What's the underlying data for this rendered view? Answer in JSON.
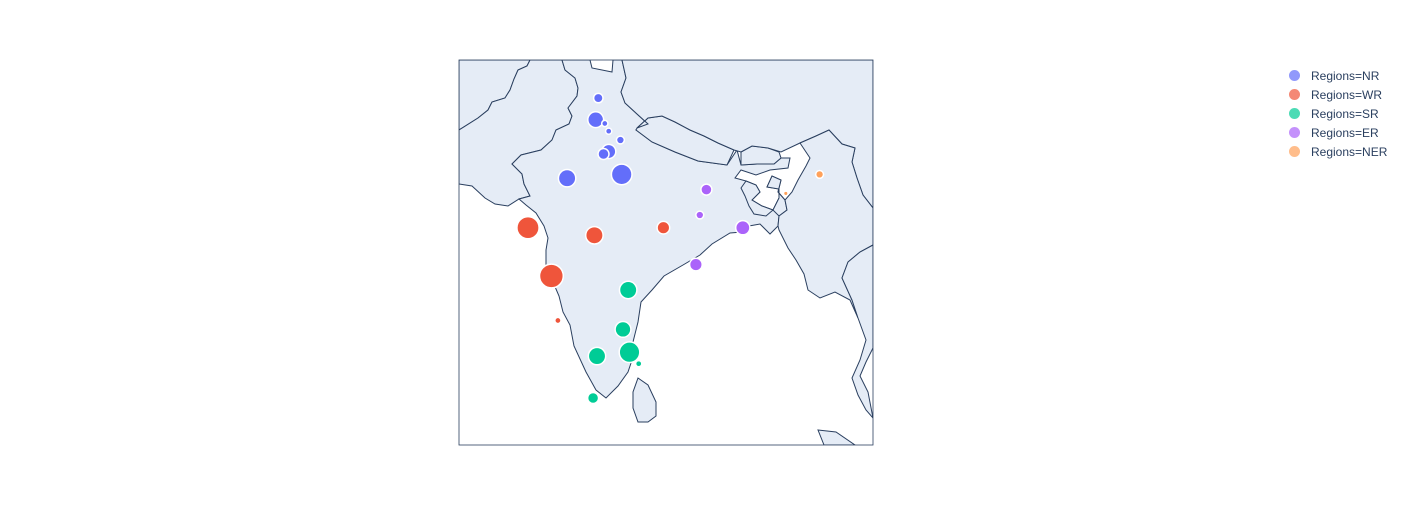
{
  "legend": {
    "items": [
      {
        "label": "Regions=NR",
        "color": "#636efa"
      },
      {
        "label": "Regions=WR",
        "color": "#ef553b"
      },
      {
        "label": "Regions=SR",
        "color": "#00cc96"
      },
      {
        "label": "Regions=ER",
        "color": "#ab63fa"
      },
      {
        "label": "Regions=NER",
        "color": "#ffa15a"
      }
    ]
  },
  "map": {
    "projection": "geographic",
    "land_color": "#e5ecf6",
    "border_color": "#2a3f5f",
    "lon_range": [
      66.5,
      98.3
    ],
    "lat_range": [
      5.5,
      35.8
    ]
  },
  "chart_data": {
    "type": "scatter",
    "series": [
      {
        "name": "Regions=NR",
        "color": "#636efa",
        "points": [
          {
            "lon": 77.2,
            "lat": 32.8,
            "size": 4
          },
          {
            "lon": 77.0,
            "lat": 31.1,
            "size": 8
          },
          {
            "lon": 78.0,
            "lat": 30.2,
            "size": 2
          },
          {
            "lon": 77.7,
            "lat": 30.8,
            "size": 2
          },
          {
            "lon": 78.9,
            "lat": 29.5,
            "size": 3
          },
          {
            "lon": 77.6,
            "lat": 28.4,
            "size": 5
          },
          {
            "lon": 78.0,
            "lat": 28.6,
            "size": 7
          },
          {
            "lon": 79.0,
            "lat": 26.8,
            "size": 11
          },
          {
            "lon": 74.8,
            "lat": 26.5,
            "size": 9
          }
        ]
      },
      {
        "name": "Regions=WR",
        "color": "#ef553b",
        "points": [
          {
            "lon": 71.8,
            "lat": 22.6,
            "size": 12
          },
          {
            "lon": 76.9,
            "lat": 22.0,
            "size": 9
          },
          {
            "lon": 82.2,
            "lat": 22.6,
            "size": 6
          },
          {
            "lon": 73.6,
            "lat": 18.8,
            "size": 13
          },
          {
            "lon": 74.1,
            "lat": 15.3,
            "size": 2
          }
        ]
      },
      {
        "name": "Regions=SR",
        "color": "#00cc96",
        "points": [
          {
            "lon": 79.5,
            "lat": 17.7,
            "size": 9
          },
          {
            "lon": 79.1,
            "lat": 14.6,
            "size": 8
          },
          {
            "lon": 77.1,
            "lat": 12.5,
            "size": 9
          },
          {
            "lon": 79.6,
            "lat": 12.8,
            "size": 11
          },
          {
            "lon": 80.3,
            "lat": 11.9,
            "size": 2
          },
          {
            "lon": 76.8,
            "lat": 9.2,
            "size": 5
          }
        ]
      },
      {
        "name": "Regions=ER",
        "color": "#ab63fa",
        "points": [
          {
            "lon": 85.5,
            "lat": 25.6,
            "size": 5
          },
          {
            "lon": 85.0,
            "lat": 23.6,
            "size": 3
          },
          {
            "lon": 88.3,
            "lat": 22.6,
            "size": 7
          },
          {
            "lon": 84.7,
            "lat": 19.7,
            "size": 6
          }
        ]
      },
      {
        "name": "Regions=NER",
        "color": "#ffa15a",
        "points": [
          {
            "lon": 94.2,
            "lat": 26.8,
            "size": 3
          },
          {
            "lon": 91.6,
            "lat": 25.3,
            "size": 1
          }
        ]
      }
    ]
  }
}
